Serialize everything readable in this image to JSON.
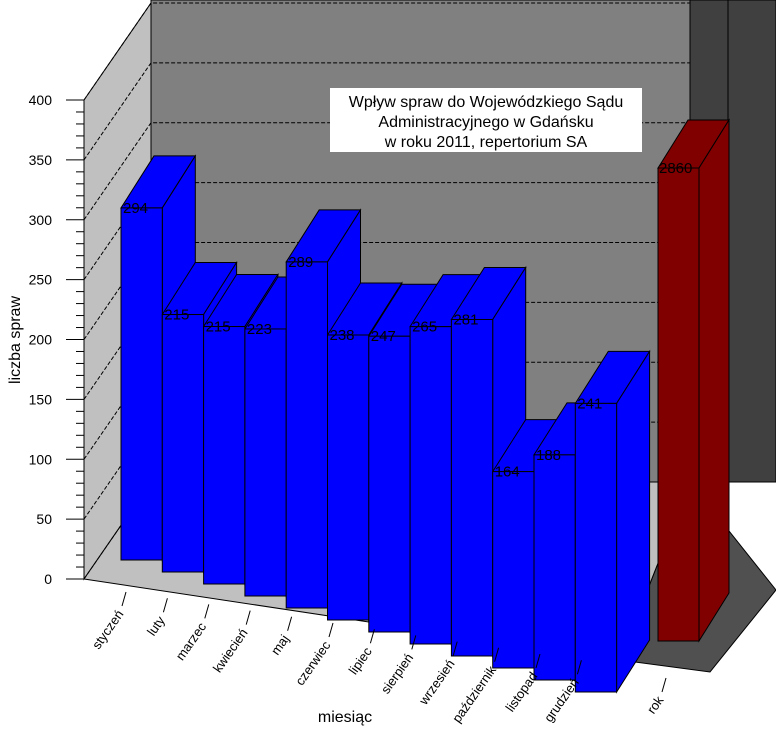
{
  "chart_data": {
    "type": "bar",
    "title_lines": [
      "Wpływ spraw do Wojewódzkiego Sądu",
      "Administracyjnego w Gdańsku",
      "w roku 2011, repertorium SA"
    ],
    "xlabel": "miesiąc",
    "ylabel": "liczba spraw",
    "ylim": [
      0,
      400
    ],
    "yticks": [
      "0",
      "50",
      "100",
      "150",
      "200",
      "250",
      "300",
      "350",
      "400"
    ],
    "categories": [
      "styczeń",
      "luty",
      "marzec",
      "kwiecień",
      "maj",
      "czerwiec",
      "lipiec",
      "sierpień",
      "wrzesień",
      "październik",
      "listopad",
      "grudzień"
    ],
    "values": [
      294,
      215,
      215,
      223,
      289,
      238,
      247,
      265,
      281,
      164,
      188,
      241
    ],
    "total": {
      "category": "rok",
      "value": 2860
    },
    "colors": {
      "months": "#0000ff",
      "total": "#800000",
      "back_wall": "#808080",
      "side_wall": "#c0c0c0",
      "floor": "#c0c0c0",
      "total_panel": "#404040"
    },
    "grid": true,
    "three_d": true
  }
}
